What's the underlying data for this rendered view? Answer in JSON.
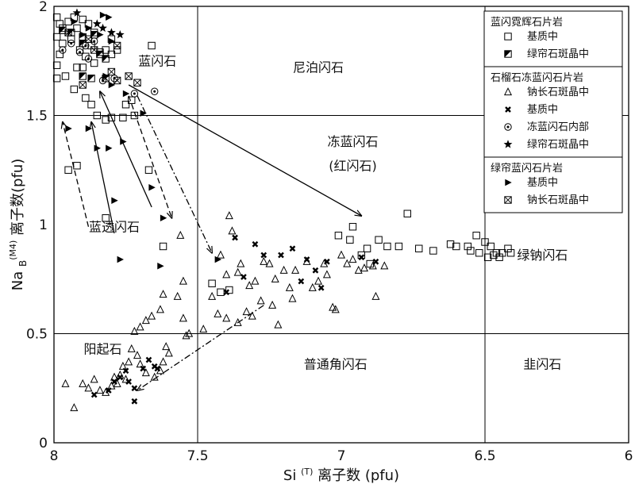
{
  "chart_data": {
    "type": "scatter",
    "title": "",
    "xlabel": "Si(T) 离子数 (pfu)",
    "xlabel_sup": "(T)",
    "ylabel": "NaB(M4) 离子数(pfu)",
    "ylabel_sup": "(M4)",
    "xlim": [
      8,
      6
    ],
    "ylim": [
      0,
      2
    ],
    "x_ticks": [
      {
        "value": 8,
        "label": "8"
      },
      {
        "value": 7.5,
        "label": "7.5"
      },
      {
        "value": 7,
        "label": "7"
      },
      {
        "value": 6.5,
        "label": "6.5"
      },
      {
        "value": 6,
        "label": "6"
      }
    ],
    "y_ticks": [
      {
        "value": 0,
        "label": "0"
      },
      {
        "value": 0.5,
        "label": "0.5"
      },
      {
        "value": 1,
        "label": "1"
      },
      {
        "value": 1.5,
        "label": "1.5"
      },
      {
        "value": 2,
        "label": "2"
      }
    ],
    "grid_lines": {
      "x": [
        7.5,
        6.5
      ],
      "y": [
        0.5,
        1.5
      ]
    },
    "regions": [
      {
        "label": "蓝闪石",
        "x": 7.64,
        "y": 1.73
      },
      {
        "label": "尼泊闪石",
        "x": 7.08,
        "y": 1.7
      },
      {
        "label": "冻蓝闪石",
        "x": 6.96,
        "y": 1.36
      },
      {
        "label": "(红闪石)",
        "x": 6.96,
        "y": 1.25
      },
      {
        "label": "蓝透闪石",
        "x": 7.79,
        "y": 0.97
      },
      {
        "label": "绿钠闪石",
        "x": 6.3,
        "y": 0.84
      },
      {
        "label": "阳起石",
        "x": 7.83,
        "y": 0.41
      },
      {
        "label": "普通角闪石",
        "x": 7.02,
        "y": 0.34
      },
      {
        "label": "韭闪石",
        "x": 6.3,
        "y": 0.34
      }
    ],
    "legend": {
      "groups": [
        {
          "title": "蓝闪霓辉石片岩",
          "items": [
            {
              "symbol": "square",
              "label": "基质中"
            },
            {
              "symbol": "halfsquare",
              "label": "绿帘石斑晶中"
            }
          ]
        },
        {
          "title": "石榴石冻蓝闪石片岩",
          "items": [
            {
              "symbol": "triangle",
              "label": "钠长石斑晶中"
            },
            {
              "symbol": "xmark",
              "label": "基质中"
            },
            {
              "symbol": "circledot",
              "label": "冻蓝闪石内部"
            },
            {
              "symbol": "star",
              "label": "绿帘石斑晶中"
            }
          ]
        },
        {
          "title": "绿帘蓝闪石片岩",
          "items": [
            {
              "symbol": "filltri",
              "label": "基质中"
            },
            {
              "symbol": "xsquare",
              "label": "钠长石斑晶中"
            }
          ]
        }
      ]
    },
    "series": [
      {
        "name": "蓝闪霓辉石片岩-基质中",
        "symbol": "square",
        "points": [
          [
            7.99,
            1.95
          ],
          [
            7.98,
            1.92
          ],
          [
            7.97,
            1.9
          ],
          [
            7.99,
            1.86
          ],
          [
            7.97,
            1.83
          ],
          [
            7.98,
            1.78
          ],
          [
            7.99,
            1.73
          ],
          [
            7.96,
            1.68
          ],
          [
            7.99,
            1.67
          ],
          [
            7.95,
            1.93
          ],
          [
            7.93,
            1.95
          ],
          [
            7.9,
            1.94
          ],
          [
            7.92,
            1.9
          ],
          [
            7.88,
            1.92
          ],
          [
            7.9,
            1.86
          ],
          [
            7.94,
            1.85
          ],
          [
            7.86,
            1.88
          ],
          [
            7.91,
            1.8
          ],
          [
            7.87,
            1.82
          ],
          [
            7.89,
            1.77
          ],
          [
            7.92,
            1.72
          ],
          [
            7.86,
            1.74
          ],
          [
            7.84,
            1.79
          ],
          [
            7.82,
            1.8
          ],
          [
            7.8,
            1.78
          ],
          [
            7.8,
            1.85
          ],
          [
            7.78,
            1.8
          ],
          [
            7.66,
            1.82
          ],
          [
            7.9,
            1.72
          ],
          [
            7.93,
            1.62
          ],
          [
            7.89,
            1.58
          ],
          [
            7.87,
            1.55
          ],
          [
            7.85,
            1.5
          ],
          [
            7.82,
            1.48
          ],
          [
            7.8,
            1.49
          ],
          [
            7.76,
            1.49
          ],
          [
            7.75,
            1.55
          ],
          [
            7.73,
            1.57
          ],
          [
            7.72,
            1.5
          ],
          [
            7.95,
            1.25
          ],
          [
            7.92,
            1.27
          ],
          [
            7.67,
            1.25
          ],
          [
            7.82,
            1.03
          ],
          [
            7.62,
            0.9
          ],
          [
            7.45,
            0.73
          ],
          [
            7.42,
            0.69
          ],
          [
            7.39,
            0.7
          ],
          [
            7.01,
            0.95
          ],
          [
            6.97,
            0.93
          ],
          [
            6.96,
            0.99
          ],
          [
            6.93,
            0.86
          ],
          [
            6.91,
            0.89
          ],
          [
            6.9,
            0.82
          ],
          [
            6.87,
            0.93
          ],
          [
            6.84,
            0.9
          ],
          [
            6.8,
            0.9
          ],
          [
            6.77,
            1.05
          ],
          [
            6.73,
            0.89
          ],
          [
            6.68,
            0.88
          ],
          [
            6.62,
            0.91
          ],
          [
            6.6,
            0.9
          ],
          [
            6.56,
            0.9
          ],
          [
            6.55,
            0.88
          ],
          [
            6.53,
            0.95
          ],
          [
            6.52,
            0.87
          ],
          [
            6.5,
            0.92
          ],
          [
            6.48,
            0.9
          ],
          [
            6.47,
            0.86
          ],
          [
            6.46,
            0.87
          ],
          [
            6.44,
            0.87
          ],
          [
            6.42,
            0.89
          ],
          [
            6.41,
            0.87
          ],
          [
            6.49,
            0.85
          ],
          [
            6.45,
            0.85
          ]
        ]
      },
      {
        "name": "蓝闪霓辉石片岩-绿帘石斑晶中",
        "symbol": "halfsquare",
        "points": [
          [
            7.97,
            1.89
          ],
          [
            7.94,
            1.88
          ],
          [
            7.9,
            1.83
          ],
          [
            7.86,
            1.87
          ],
          [
            7.84,
            1.78
          ],
          [
            7.82,
            1.76
          ],
          [
            7.9,
            1.68
          ],
          [
            7.87,
            1.67
          ]
        ]
      },
      {
        "name": "石榴石冻蓝闪石片岩-钠长石斑晶中",
        "symbol": "triangle",
        "points": [
          [
            7.39,
            1.04
          ],
          [
            7.38,
            0.97
          ],
          [
            7.35,
            0.82
          ],
          [
            7.42,
            0.86
          ],
          [
            7.36,
            0.78
          ],
          [
            7.4,
            0.77
          ],
          [
            7.32,
            0.72
          ],
          [
            7.3,
            0.74
          ],
          [
            7.28,
            0.65
          ],
          [
            7.33,
            0.6
          ],
          [
            7.27,
            0.83
          ],
          [
            7.25,
            0.82
          ],
          [
            7.23,
            0.75
          ],
          [
            7.2,
            0.79
          ],
          [
            7.18,
            0.71
          ],
          [
            7.17,
            0.66
          ],
          [
            7.16,
            0.79
          ],
          [
            7.12,
            0.83
          ],
          [
            7.1,
            0.71
          ],
          [
            7.08,
            0.74
          ],
          [
            7.06,
            0.82
          ],
          [
            7.05,
            0.77
          ],
          [
            7.03,
            0.62
          ],
          [
            7.02,
            0.61
          ],
          [
            7.0,
            0.86
          ],
          [
            6.98,
            0.82
          ],
          [
            6.96,
            0.84
          ],
          [
            6.94,
            0.79
          ],
          [
            6.92,
            0.8
          ],
          [
            6.89,
            0.81
          ],
          [
            6.88,
            0.67
          ],
          [
            6.85,
            0.81
          ],
          [
            7.36,
            0.55
          ],
          [
            7.4,
            0.57
          ],
          [
            7.31,
            0.58
          ],
          [
            7.22,
            0.54
          ],
          [
            7.24,
            0.63
          ],
          [
            7.45,
            0.67
          ],
          [
            7.43,
            0.59
          ],
          [
            7.48,
            0.52
          ],
          [
            7.55,
            0.57
          ],
          [
            7.57,
            0.67
          ],
          [
            7.55,
            0.74
          ],
          [
            7.53,
            0.5
          ],
          [
            7.54,
            0.49
          ],
          [
            7.56,
            0.95
          ],
          [
            7.63,
            0.61
          ],
          [
            7.68,
            0.56
          ],
          [
            7.7,
            0.53
          ],
          [
            7.72,
            0.51
          ],
          [
            7.66,
            0.58
          ],
          [
            7.62,
            0.68
          ],
          [
            7.61,
            0.44
          ],
          [
            7.6,
            0.41
          ],
          [
            7.62,
            0.37
          ],
          [
            7.63,
            0.33
          ],
          [
            7.65,
            0.3
          ],
          [
            7.68,
            0.32
          ],
          [
            7.7,
            0.36
          ],
          [
            7.71,
            0.4
          ],
          [
            7.73,
            0.43
          ],
          [
            7.74,
            0.37
          ],
          [
            7.76,
            0.35
          ],
          [
            7.75,
            0.29
          ],
          [
            7.77,
            0.31
          ],
          [
            7.78,
            0.27
          ],
          [
            7.79,
            0.3
          ],
          [
            7.8,
            0.26
          ],
          [
            7.82,
            0.23
          ],
          [
            7.84,
            0.24
          ],
          [
            7.86,
            0.29
          ],
          [
            7.88,
            0.25
          ],
          [
            7.9,
            0.27
          ],
          [
            7.93,
            0.16
          ],
          [
            7.96,
            0.27
          ]
        ]
      },
      {
        "name": "石榴石冻蓝闪石片岩-基质中",
        "symbol": "xmark",
        "points": [
          [
            7.37,
            0.94
          ],
          [
            7.3,
            0.91
          ],
          [
            7.27,
            0.86
          ],
          [
            7.21,
            0.86
          ],
          [
            7.17,
            0.89
          ],
          [
            7.12,
            0.84
          ],
          [
            7.09,
            0.79
          ],
          [
            7.05,
            0.83
          ],
          [
            7.07,
            0.71
          ],
          [
            6.93,
            0.85
          ],
          [
            6.88,
            0.83
          ],
          [
            7.4,
            0.69
          ],
          [
            7.34,
            0.76
          ],
          [
            7.14,
            0.74
          ],
          [
            7.72,
            0.25
          ],
          [
            7.74,
            0.28
          ],
          [
            7.75,
            0.33
          ],
          [
            7.77,
            0.3
          ],
          [
            7.79,
            0.28
          ],
          [
            7.81,
            0.24
          ],
          [
            7.86,
            0.22
          ],
          [
            7.72,
            0.19
          ],
          [
            7.69,
            0.34
          ],
          [
            7.67,
            0.38
          ],
          [
            7.65,
            0.35
          ],
          [
            7.64,
            0.34
          ]
        ]
      },
      {
        "name": "石榴石冻蓝闪石片岩-冻蓝闪石内部",
        "symbol": "circledot",
        "points": [
          [
            7.97,
            1.8
          ],
          [
            7.94,
            1.83
          ],
          [
            7.91,
            1.79
          ],
          [
            7.89,
            1.82
          ],
          [
            7.86,
            1.84
          ],
          [
            7.88,
            1.76
          ],
          [
            7.83,
            1.66
          ],
          [
            7.79,
            1.67
          ],
          [
            7.72,
            1.6
          ],
          [
            7.65,
            1.61
          ]
        ]
      },
      {
        "name": "石榴石冻蓝闪石片岩-绿帘石斑晶中",
        "symbol": "star",
        "points": [
          [
            7.92,
            1.97
          ],
          [
            7.83,
            1.9
          ],
          [
            7.8,
            1.88
          ],
          [
            7.77,
            1.87
          ],
          [
            7.85,
            1.92
          ]
        ]
      },
      {
        "name": "绿帘蓝闪石片岩-基质中",
        "symbol": "filltri",
        "points": [
          [
            7.83,
            1.96
          ],
          [
            7.81,
            1.95
          ],
          [
            7.84,
            1.87
          ],
          [
            7.8,
            1.84
          ],
          [
            7.93,
            1.93
          ],
          [
            7.88,
            1.9
          ],
          [
            7.9,
            1.87
          ],
          [
            7.82,
            1.68
          ],
          [
            7.8,
            1.64
          ],
          [
            7.75,
            1.6
          ],
          [
            7.95,
            1.44
          ],
          [
            7.88,
            1.44
          ],
          [
            7.85,
            1.35
          ],
          [
            7.81,
            1.35
          ],
          [
            7.76,
            1.38
          ],
          [
            7.66,
            1.17
          ],
          [
            7.62,
            1.03
          ],
          [
            7.79,
            1.11
          ],
          [
            7.77,
            0.84
          ],
          [
            7.63,
            0.81
          ],
          [
            7.43,
            0.84
          ],
          [
            7.69,
            1.51
          ]
        ]
      },
      {
        "name": "绿帘蓝闪石片岩-钠长石斑晶中",
        "symbol": "xsquare",
        "points": [
          [
            7.95,
            1.88
          ],
          [
            7.88,
            1.85
          ],
          [
            7.86,
            1.8
          ],
          [
            7.78,
            1.82
          ],
          [
            7.9,
            1.64
          ],
          [
            7.82,
            1.67
          ],
          [
            7.8,
            1.7
          ],
          [
            7.78,
            1.66
          ],
          [
            7.74,
            1.68
          ],
          [
            7.71,
            1.65
          ]
        ]
      }
    ],
    "arrows": [
      {
        "style": "solid",
        "from": [
          7.74,
          1.64
        ],
        "to": [
          6.93,
          1.04
        ]
      },
      {
        "style": "solid",
        "from": [
          7.66,
          1.08
        ],
        "to": [
          7.84,
          1.61
        ]
      },
      {
        "style": "solid",
        "from": [
          7.79,
          0.96
        ],
        "to": [
          7.87,
          1.47
        ]
      },
      {
        "style": "dashed",
        "from": [
          7.74,
          1.59
        ],
        "to": [
          7.59,
          1.03
        ]
      },
      {
        "style": "dashed",
        "from": [
          7.88,
          0.99
        ],
        "to": [
          7.97,
          1.47
        ]
      },
      {
        "style": "dashdot",
        "from": [
          7.71,
          1.59
        ],
        "to": [
          7.45,
          0.87
        ]
      },
      {
        "style": "dashdot",
        "from": [
          7.27,
          0.63
        ],
        "to": [
          7.71,
          0.24
        ]
      }
    ]
  }
}
